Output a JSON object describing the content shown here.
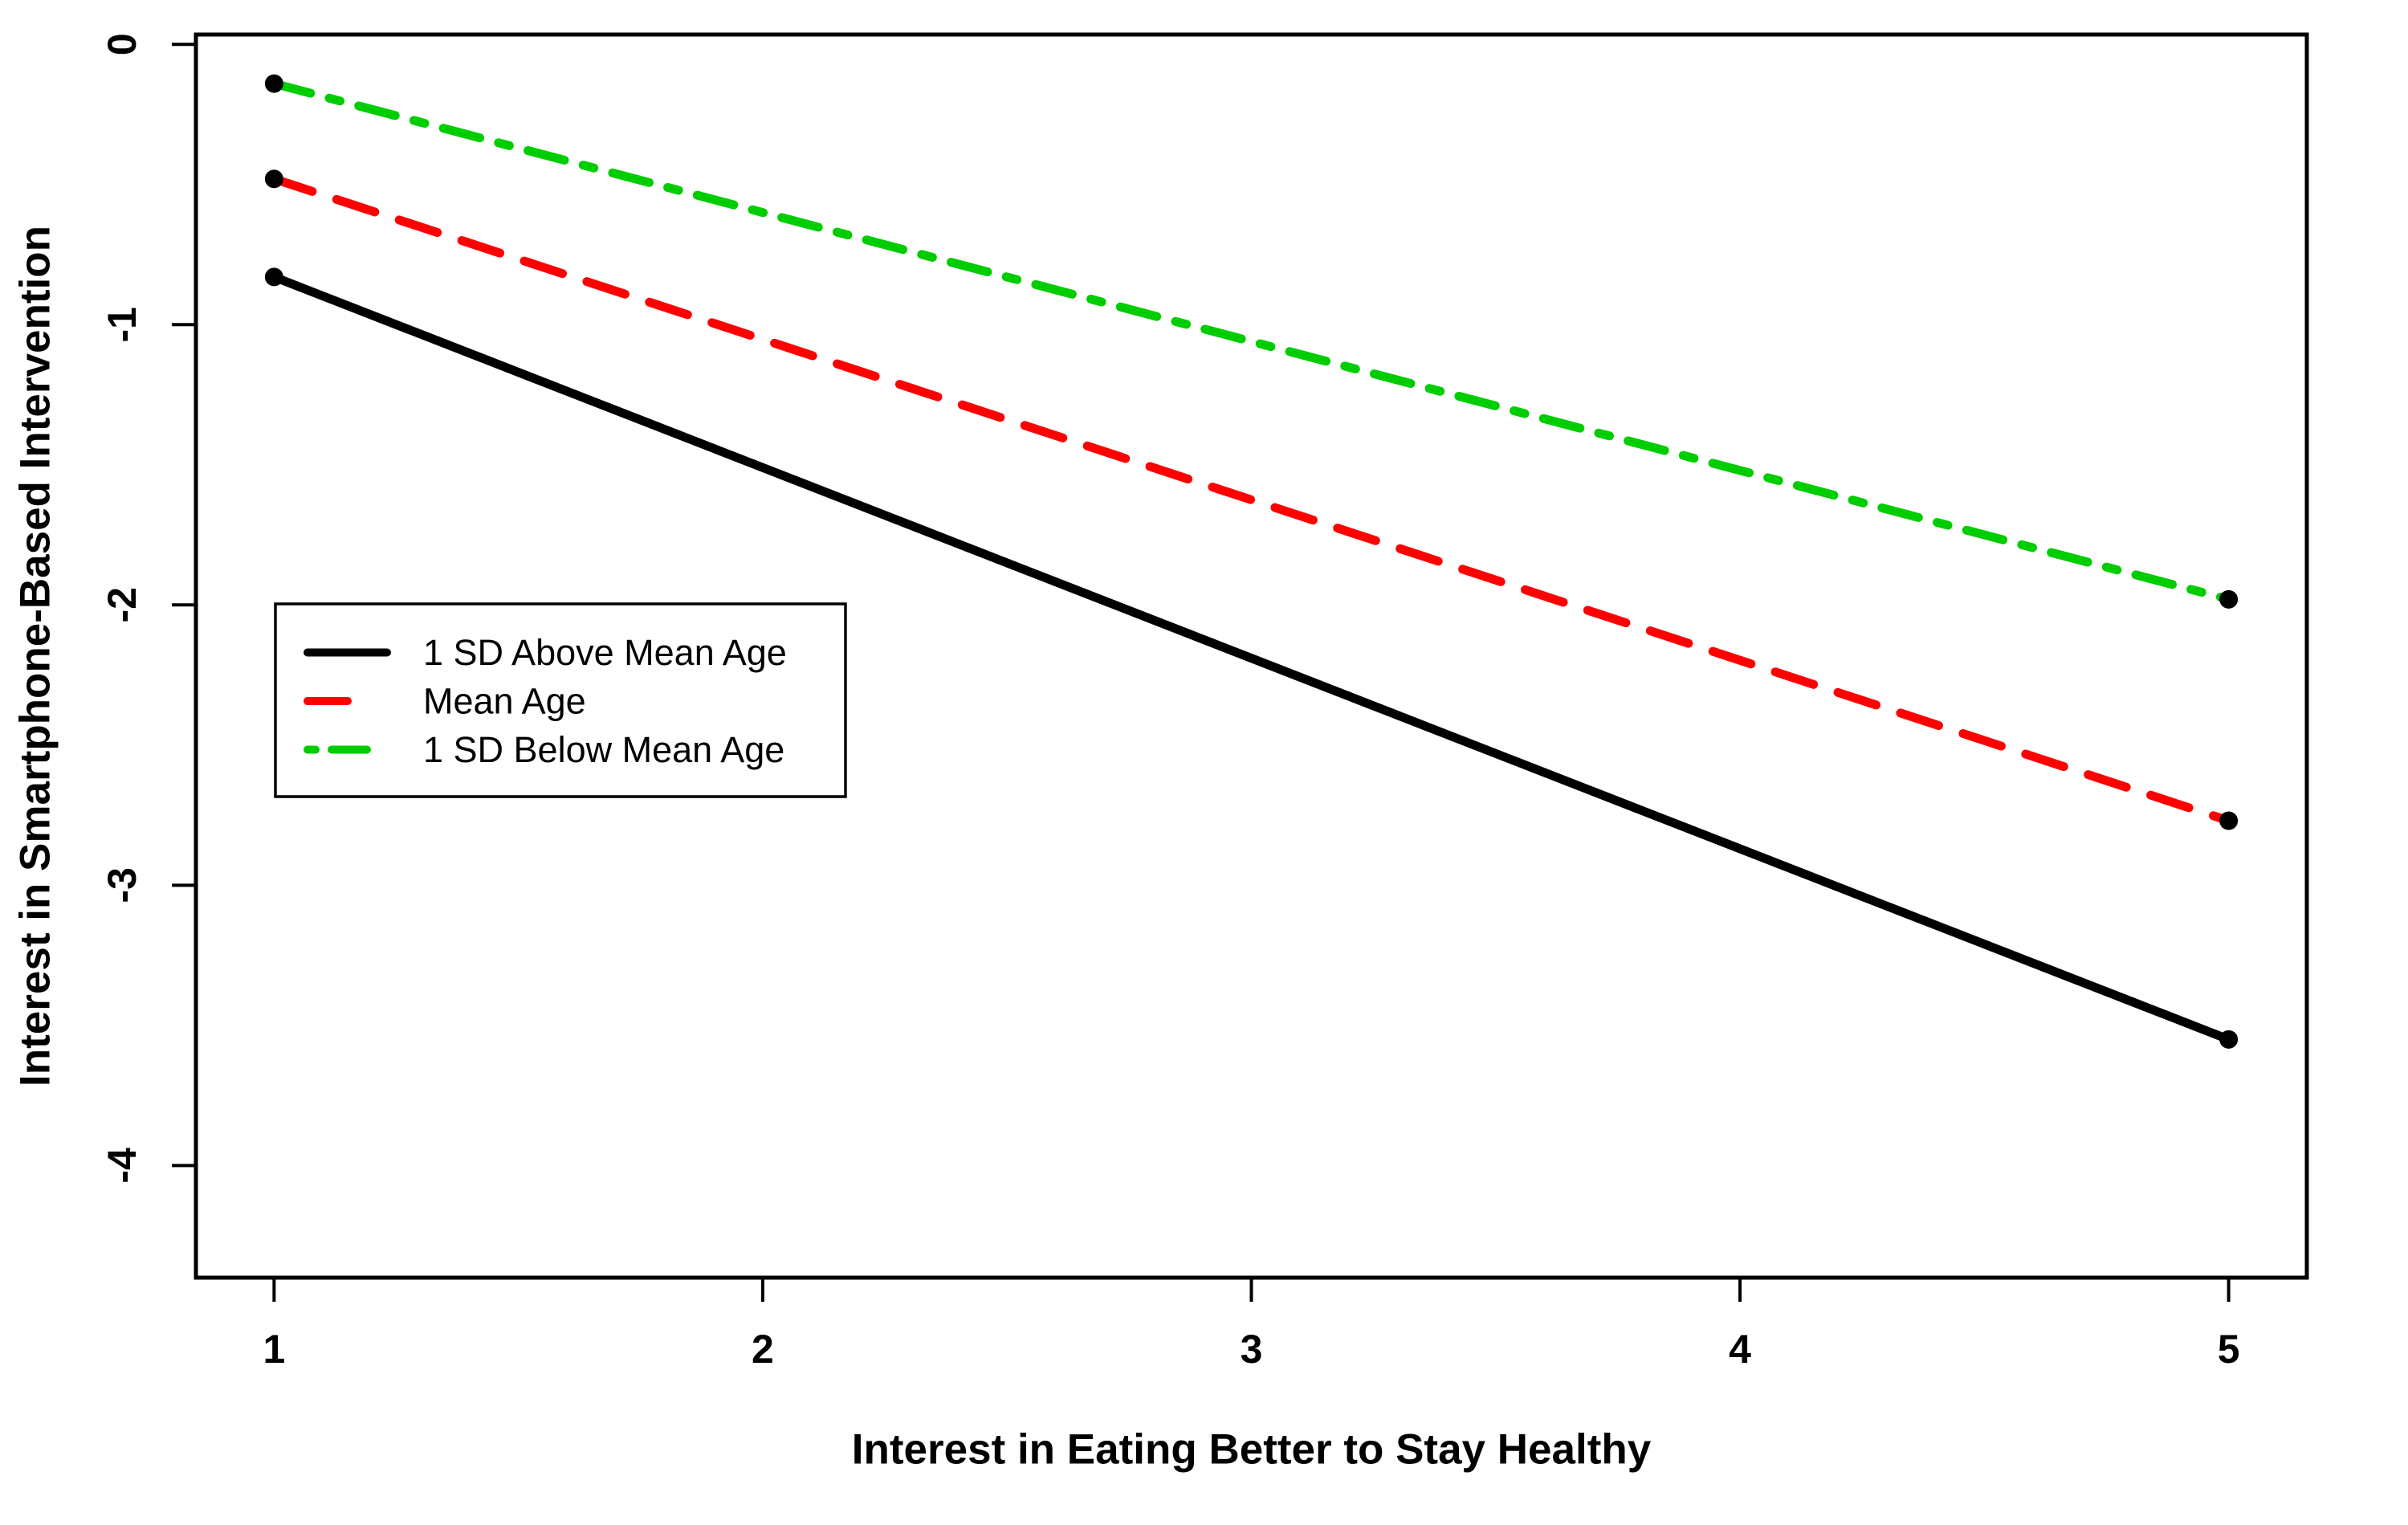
{
  "figure": {
    "background": "#FFFFFF"
  },
  "chart_data": {
    "type": "line",
    "title": "",
    "xlabel": "Interest in Eating Better to Stay Healthy",
    "ylabel": "Interest in Smartphone-Based Intervention",
    "x": [
      1,
      5
    ],
    "series": [
      {
        "name": "1 SD Above Mean Age",
        "color": "#000000",
        "linestyle": "solid",
        "values": [
          -0.83,
          -3.55
        ]
      },
      {
        "name": "Mean Age",
        "color": "#FF0000",
        "linestyle": "longdash",
        "values": [
          -0.48,
          -2.77
        ]
      },
      {
        "name": "1 SD Below Mean Age",
        "color": "#00CD00",
        "linestyle": "twodash",
        "values": [
          -0.14,
          -1.98
        ]
      }
    ],
    "x_ticks": [
      1,
      2,
      3,
      4,
      5
    ],
    "y_ticks": [
      0,
      -1,
      -2,
      -3,
      -4
    ],
    "xlim": [
      0.84,
      5.16
    ],
    "ylim": [
      -4.4,
      0.035
    ],
    "grid": false,
    "legend_position": "middle-left",
    "point_marker": "filled-circle",
    "point_color": "#000000",
    "axis_color": "#000000"
  }
}
